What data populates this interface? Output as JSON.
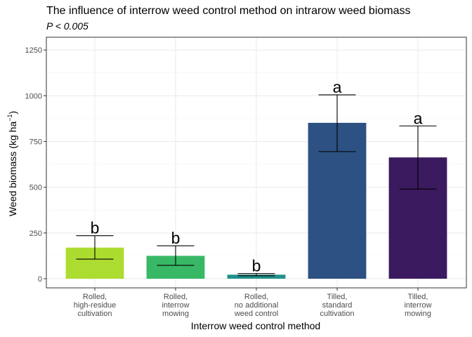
{
  "chart_data": {
    "type": "bar",
    "title": "The influence of interrow weed control method on intrarow weed biomass",
    "subtitle": "P < 0.005",
    "xlabel": "Interrow weed control method",
    "ylabel_main": "Weed biomass (kg ha",
    "ylabel_sup": "−1",
    "ylabel_end": ")",
    "ylim": [
      -50,
      1320
    ],
    "yticks": [
      0,
      250,
      500,
      750,
      1000,
      1250
    ],
    "ytick_labels": [
      "0",
      "250",
      "500",
      "750",
      "1000",
      "1250"
    ],
    "grid": true,
    "legend": "none",
    "categories": [
      [
        "Rolled,",
        "high-residue",
        "cultivation"
      ],
      [
        "Rolled,",
        "interrow",
        "mowing"
      ],
      [
        "Rolled,",
        "no additional",
        "weed control"
      ],
      [
        "Tilled,",
        "standard",
        "cultivation"
      ],
      [
        "Tilled,",
        "interrow",
        "mowing"
      ]
    ],
    "values": [
      170,
      125,
      22,
      852,
      663
    ],
    "error_low": [
      107,
      73,
      16,
      695,
      490
    ],
    "error_high": [
      235,
      180,
      28,
      1005,
      835
    ],
    "significance_letters": [
      "b",
      "b",
      "b",
      "a",
      "a"
    ],
    "colors": [
      "#addc30",
      "#38b865",
      "#21918c",
      "#2c5182",
      "#3b1a60"
    ]
  }
}
